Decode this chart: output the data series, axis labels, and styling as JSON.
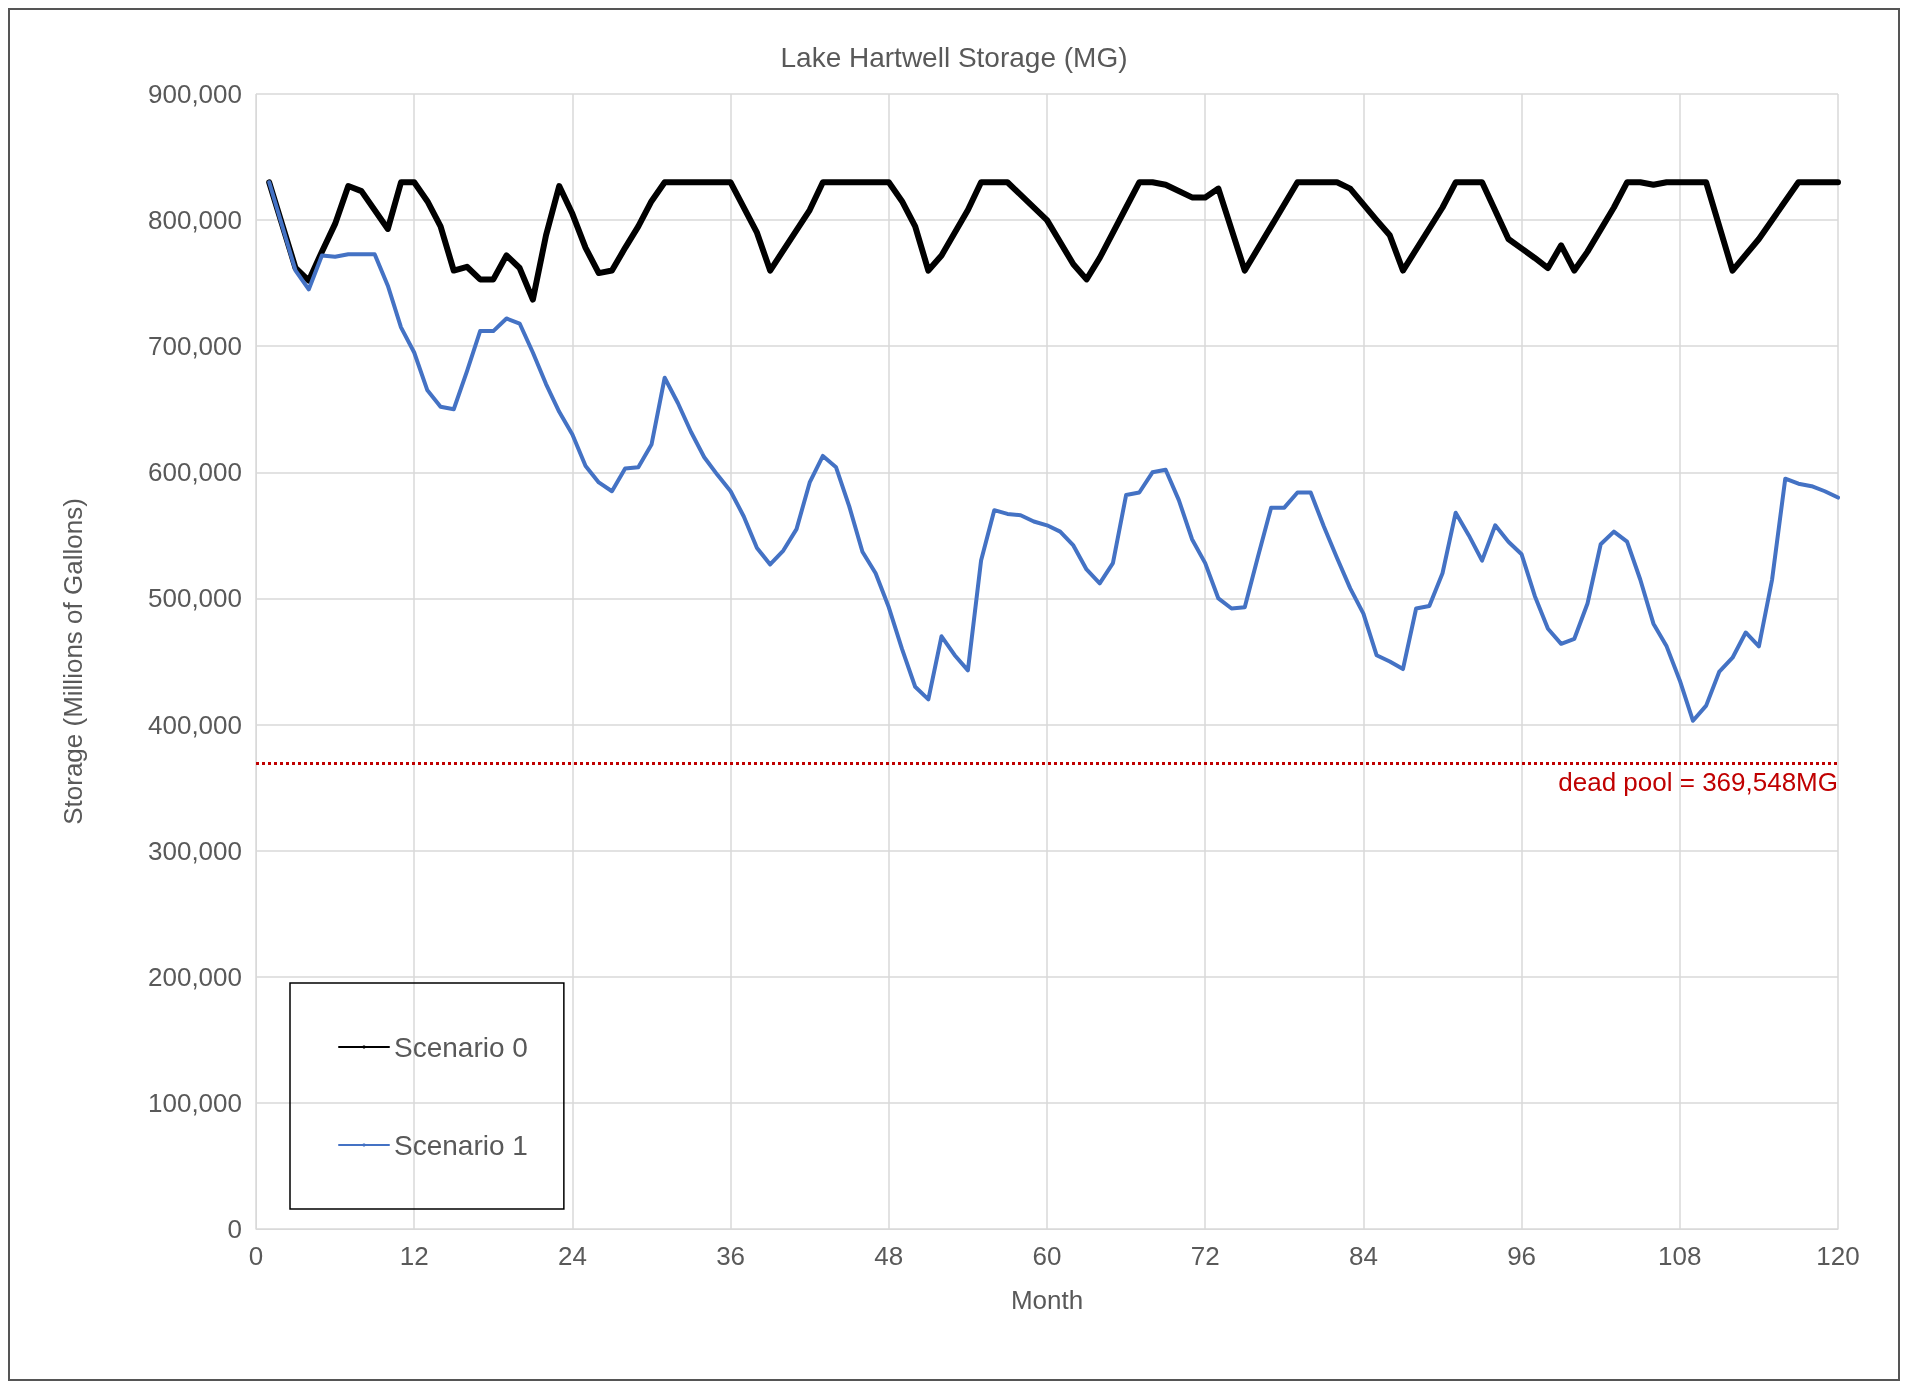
{
  "chart_data": {
    "type": "line",
    "title": "Lake Hartwell Storage (MG)",
    "xlabel": "Month",
    "ylabel": "Storage (Millions of Gallons)",
    "xlim": [
      0,
      120
    ],
    "xticks": [
      0,
      12,
      24,
      36,
      48,
      60,
      72,
      84,
      96,
      108,
      120
    ],
    "ylim": [
      0,
      900000
    ],
    "yticks": [
      0,
      {
        "value": 100000,
        "label": "100,000"
      },
      {
        "value": 200000,
        "label": "200,000"
      },
      {
        "value": 300000,
        "label": "300,000"
      },
      {
        "value": 400000,
        "label": "400,000"
      },
      {
        "value": 500000,
        "label": "500,000"
      },
      {
        "value": 600000,
        "label": "600,000"
      },
      {
        "value": 700000,
        "label": "700,000"
      },
      {
        "value": 800000,
        "label": "800,000"
      },
      {
        "value": 900000,
        "label": "900,000"
      }
    ],
    "grid": true,
    "legend": "bottom left",
    "marker": "none",
    "line_style": "solid",
    "ref_lines": [
      {
        "axis": "y",
        "value": 369548,
        "label": "dead pool = 369,548MG",
        "color": "#c00000",
        "line_style": "dotted"
      }
    ],
    "series": [
      {
        "name": "Scenario 0",
        "color": "#000000",
        "x": [
          1,
          3,
          4,
          5,
          6,
          7,
          8,
          10,
          11,
          12,
          13,
          14,
          15,
          16,
          17,
          18,
          19,
          20,
          21,
          22,
          23,
          24,
          25,
          26,
          27,
          28,
          29,
          30,
          31,
          36,
          38,
          39,
          42,
          43,
          48,
          49,
          50,
          51,
          52,
          54,
          55,
          57,
          60,
          62,
          63,
          64,
          66,
          67,
          68,
          69,
          71,
          72,
          73,
          75,
          79,
          82,
          83,
          85,
          86,
          87,
          90,
          91,
          93,
          95,
          97,
          98,
          99,
          100,
          101,
          103,
          104,
          105,
          106,
          107,
          110,
          112,
          114,
          117,
          120
        ],
        "values": [
          830000,
          762000,
          752000,
          775000,
          797000,
          827000,
          823000,
          793000,
          830000,
          830000,
          815000,
          795000,
          760000,
          763000,
          753000,
          753000,
          772000,
          762000,
          737000,
          788000,
          827000,
          805000,
          778000,
          758000,
          760000,
          778000,
          795000,
          815000,
          830000,
          830000,
          790000,
          760000,
          808000,
          830000,
          830000,
          815000,
          795000,
          760000,
          772000,
          808000,
          830000,
          830000,
          800000,
          765000,
          753000,
          770000,
          810000,
          830000,
          830000,
          828000,
          818000,
          818000,
          825000,
          760000,
          830000,
          830000,
          825000,
          800000,
          788000,
          760000,
          810000,
          830000,
          830000,
          785000,
          770000,
          762000,
          780000,
          760000,
          775000,
          810000,
          830000,
          830000,
          828000,
          830000,
          830000,
          760000,
          785000,
          830000,
          830000
        ]
      },
      {
        "name": "Scenario 1",
        "color": "#4472c4",
        "x": [
          1,
          2,
          3,
          4,
          5,
          6,
          7,
          9,
          10,
          11,
          12,
          13,
          14,
          15,
          16,
          17,
          18,
          19,
          20,
          21,
          22,
          23,
          24,
          25,
          26,
          27,
          28,
          29,
          30,
          31,
          32,
          33,
          34,
          35,
          36,
          37,
          38,
          39,
          40,
          41,
          42,
          43,
          44,
          45,
          46,
          47,
          48,
          49,
          50,
          51,
          52,
          53,
          54,
          55,
          56,
          57,
          58,
          59,
          60,
          61,
          62,
          63,
          64,
          65,
          66,
          67,
          68,
          69,
          70,
          71,
          72,
          73,
          74,
          75,
          76,
          77,
          78,
          79,
          80,
          81,
          82,
          83,
          84,
          85,
          86,
          87,
          88,
          89,
          90,
          91,
          92,
          93,
          94,
          95,
          96,
          97,
          98,
          99,
          100,
          101,
          102,
          103,
          104,
          105,
          106,
          107,
          108,
          109,
          110,
          111,
          112,
          113,
          114,
          115,
          116,
          117,
          118,
          119,
          120
        ],
        "values": [
          830000,
          795000,
          760000,
          745000,
          772000,
          771000,
          773000,
          773000,
          748000,
          715000,
          695000,
          665000,
          652000,
          650000,
          680000,
          712000,
          712000,
          722000,
          718000,
          695000,
          670000,
          648000,
          630000,
          605000,
          592000,
          585000,
          603000,
          604000,
          622000,
          675000,
          655000,
          632000,
          612000,
          598000,
          585000,
          565000,
          540000,
          527000,
          538000,
          555000,
          592000,
          613000,
          604000,
          573000,
          537000,
          520000,
          493000,
          460000,
          430000,
          420000,
          470000,
          455000,
          443000,
          530000,
          570000,
          567000,
          566000,
          561000,
          558000,
          553000,
          542000,
          523000,
          512000,
          528000,
          582000,
          584000,
          600000,
          602000,
          578000,
          547000,
          528000,
          500000,
          492000,
          493000,
          533000,
          572000,
          572000,
          584000,
          584000,
          557000,
          532000,
          508000,
          488000,
          455000,
          450000,
          444000,
          492000,
          494000,
          520000,
          568000,
          550000,
          530000,
          558000,
          545000,
          535000,
          502000,
          476000,
          464000,
          468000,
          496000,
          543000,
          553000,
          545000,
          515000,
          480000,
          462000,
          435000,
          403000,
          415000,
          442000,
          453000,
          473000,
          462000,
          515000,
          595000,
          591000,
          589000,
          585000,
          580000
        ]
      }
    ]
  }
}
